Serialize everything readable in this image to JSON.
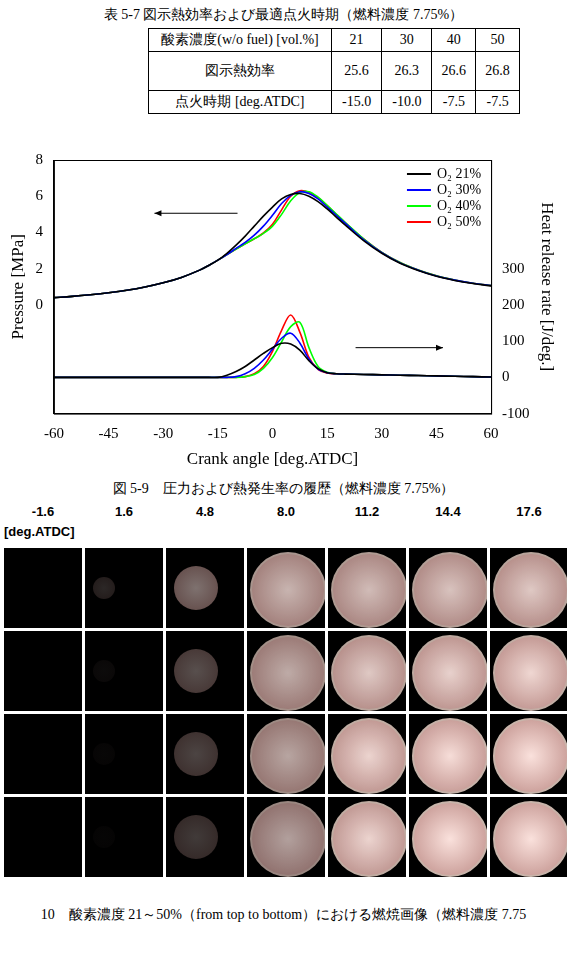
{
  "table": {
    "title": "表 5-7  図示熱効率および最適点火時期（燃料濃度 7.75%）",
    "rows": [
      [
        "酸素濃度(w/o fuel) [vol.%]",
        "21",
        "30",
        "40",
        "50"
      ],
      [
        "図示熱効率",
        "25.6",
        "26.3",
        "26.6",
        "26.8"
      ],
      [
        "点火時期  [deg.ATDC]",
        "-15.0",
        "-10.0",
        "-7.5",
        "-7.5"
      ]
    ]
  },
  "chart_data": {
    "type": "line",
    "x_label": "Crank angle [deg.ATDC]",
    "y_label": "Pressure [MPa]",
    "y2_label": "Heat release rate [J/deg.]",
    "x": [
      -60,
      -55,
      -50,
      -45,
      -40,
      -35,
      -30,
      -25,
      -20,
      -17.5,
      -15,
      -12.5,
      -10,
      -7.5,
      -5,
      -2.5,
      0,
      2.5,
      5,
      7.5,
      10,
      12.5,
      15,
      17.5,
      20,
      25,
      30,
      35,
      40,
      45,
      50,
      55,
      60
    ],
    "xlim": [
      -60,
      60
    ],
    "xticks": [
      -60,
      -45,
      -30,
      -15,
      0,
      15,
      30,
      45,
      60
    ],
    "ylim": [
      -6,
      8
    ],
    "yticks": [
      0,
      2,
      4,
      6,
      8
    ],
    "y2lim": [
      -100,
      600
    ],
    "y2ticks": [
      -100,
      0,
      100,
      200,
      300
    ],
    "grid": false,
    "legend": "upper right",
    "series": [
      {
        "name": "O₂ 21%",
        "color": "#000000",
        "axis": "y",
        "values": [
          0.4,
          0.47,
          0.56,
          0.67,
          0.81,
          0.99,
          1.22,
          1.52,
          1.92,
          2.18,
          2.47,
          2.85,
          3.3,
          3.8,
          4.35,
          4.9,
          5.4,
          5.85,
          6.1,
          6.15,
          6.0,
          5.7,
          5.3,
          4.85,
          4.4,
          3.55,
          2.85,
          2.3,
          1.9,
          1.58,
          1.35,
          1.18,
          1.05
        ]
      },
      {
        "name": "O₂ 30%",
        "color": "#0000ff",
        "axis": "y",
        "values": [
          0.4,
          0.47,
          0.56,
          0.67,
          0.81,
          0.99,
          1.22,
          1.52,
          1.92,
          2.18,
          2.47,
          2.78,
          3.12,
          3.45,
          3.85,
          4.35,
          4.95,
          5.6,
          6.05,
          6.25,
          6.15,
          5.85,
          5.4,
          4.95,
          4.5,
          3.6,
          2.88,
          2.32,
          1.92,
          1.6,
          1.37,
          1.2,
          1.07
        ]
      },
      {
        "name": "O₂ 40%",
        "color": "#00ff00",
        "axis": "y",
        "values": [
          0.4,
          0.47,
          0.56,
          0.67,
          0.81,
          0.99,
          1.22,
          1.52,
          1.92,
          2.18,
          2.47,
          2.78,
          3.08,
          3.38,
          3.65,
          3.95,
          4.35,
          5.0,
          5.75,
          6.2,
          6.25,
          5.95,
          5.5,
          5.02,
          4.55,
          3.65,
          2.9,
          2.34,
          1.93,
          1.61,
          1.38,
          1.2,
          1.07
        ]
      },
      {
        "name": "O₂ 50%",
        "color": "#ff0000",
        "axis": "y",
        "values": [
          0.4,
          0.47,
          0.56,
          0.67,
          0.81,
          0.99,
          1.22,
          1.52,
          1.92,
          2.18,
          2.47,
          2.78,
          3.08,
          3.38,
          3.65,
          3.97,
          4.45,
          5.25,
          6.0,
          6.3,
          6.22,
          5.92,
          5.48,
          5.0,
          4.53,
          3.64,
          2.9,
          2.34,
          1.93,
          1.61,
          1.38,
          1.2,
          1.07
        ]
      },
      {
        "name": "O₂ 21%",
        "color": "#000000",
        "axis": "y2",
        "values": [
          0,
          0,
          0,
          0,
          0,
          0,
          0,
          0,
          0,
          0,
          0,
          6,
          16,
          30,
          48,
          66,
          82,
          94,
          92,
          75,
          46,
          24,
          13,
          10,
          9,
          8,
          7,
          6,
          5,
          4,
          3,
          2,
          1
        ]
      },
      {
        "name": "O₂ 30%",
        "color": "#0000ff",
        "axis": "y2",
        "values": [
          0,
          0,
          0,
          0,
          0,
          0,
          0,
          0,
          0,
          0,
          0,
          0,
          2,
          10,
          25,
          48,
          78,
          108,
          122,
          95,
          50,
          23,
          13,
          10,
          9,
          8,
          7,
          6,
          5,
          4,
          3,
          2,
          1
        ]
      },
      {
        "name": "O₂ 40%",
        "color": "#00ff00",
        "axis": "y2",
        "values": [
          0,
          0,
          0,
          0,
          0,
          0,
          0,
          0,
          0,
          0,
          0,
          0,
          0,
          2,
          8,
          25,
          55,
          98,
          140,
          152,
          82,
          30,
          14,
          10,
          9,
          8,
          7,
          6,
          5,
          4,
          3,
          2,
          1
        ]
      },
      {
        "name": "O₂ 50%",
        "color": "#ff0000",
        "axis": "y2",
        "values": [
          0,
          0,
          0,
          0,
          0,
          0,
          0,
          0,
          0,
          0,
          0,
          0,
          0,
          2,
          10,
          30,
          72,
          130,
          172,
          125,
          55,
          22,
          12,
          10,
          9,
          8,
          7,
          6,
          5,
          4,
          3,
          2,
          1
        ]
      }
    ]
  },
  "chart_caption": "図 5-9　圧力および熱発生率の履歴（燃料濃度 7.75%）",
  "combustion_images": {
    "crank_angles": [
      "-1.6",
      "1.6",
      "4.8",
      "8.0",
      "11.2",
      "14.4",
      "17.6"
    ],
    "unit": "[deg.ATDC]",
    "caption": "10　酸素濃度 21～50%（from top to bottom）における燃焼画像（燃料濃度 7.75"
  }
}
